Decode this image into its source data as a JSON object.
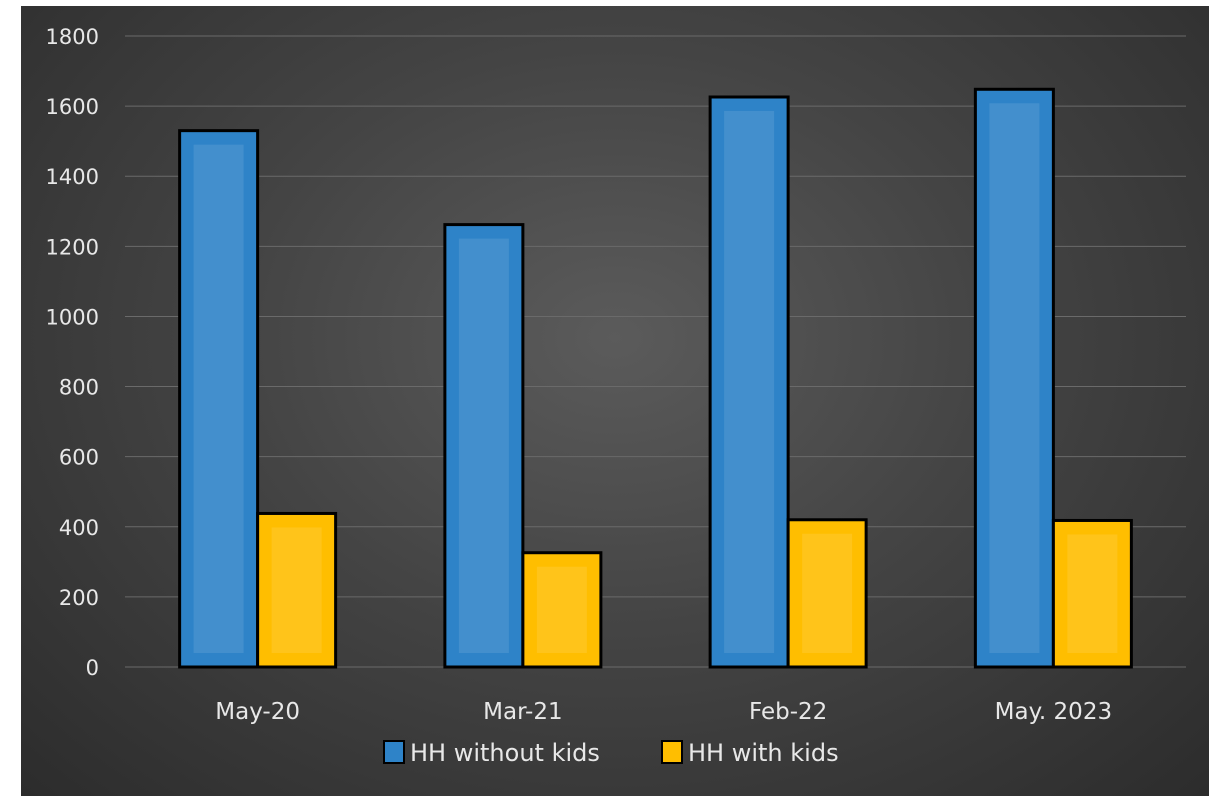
{
  "chart_data": {
    "type": "bar",
    "categories": [
      "May-20",
      "Mar-21",
      "Feb-22",
      "May. 2023"
    ],
    "series": [
      {
        "name": "HH without kids",
        "values": [
          1530,
          1262,
          1626,
          1648
        ],
        "color": "#2e83c8"
      },
      {
        "name": "HH with kids",
        "values": [
          438,
          326,
          420,
          418
        ],
        "color": "#ffbe00"
      }
    ],
    "ylim": [
      0,
      1800
    ],
    "yticks": [
      0,
      200,
      400,
      600,
      800,
      1000,
      1200,
      1400,
      1600,
      1800
    ],
    "grid": true,
    "legend_position": "bottom",
    "background": "#4a4a4a"
  }
}
